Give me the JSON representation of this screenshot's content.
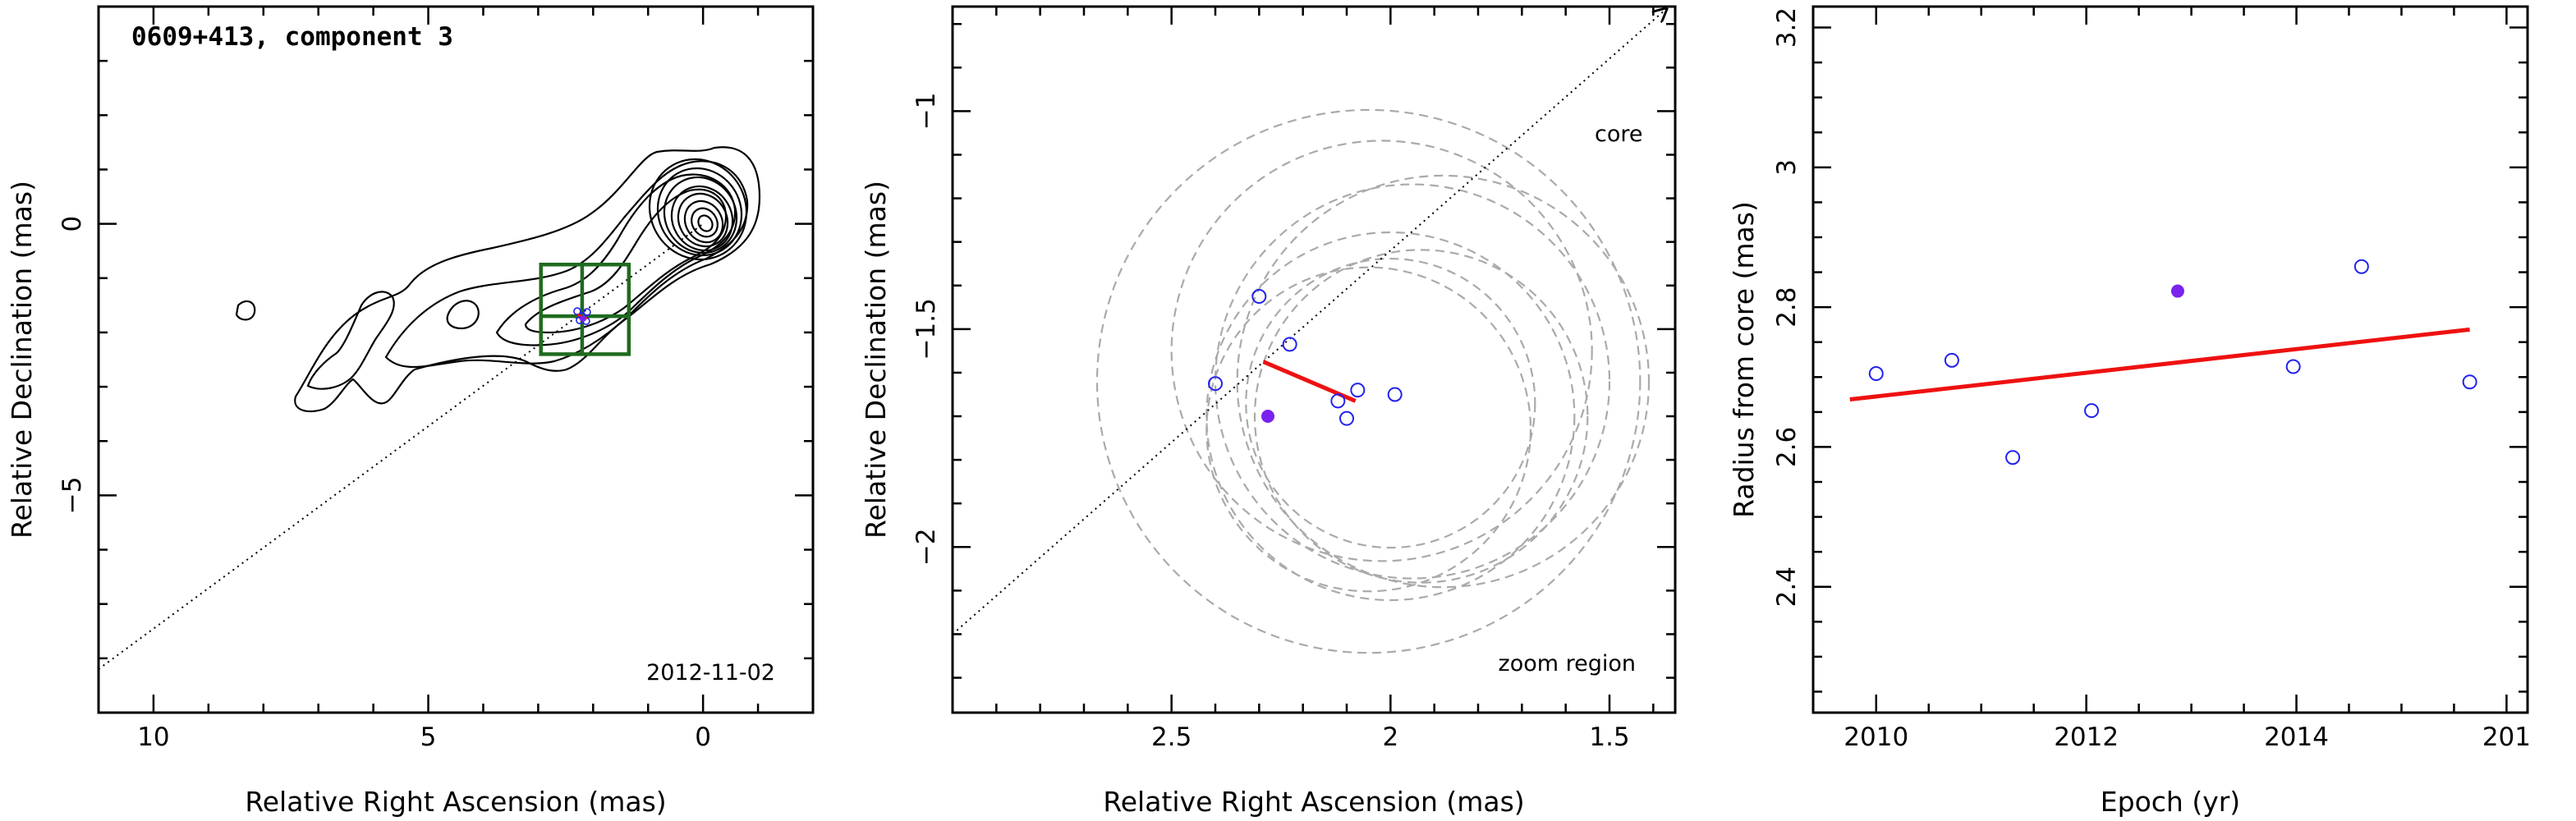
{
  "colors": {
    "axis": "#000000",
    "fit_line": "#ee1111",
    "open_marker": "#2222ee",
    "filled_marker": "#7a22ee",
    "ellipse": "#aaaaaa",
    "zoom_box": "#1f6b1f"
  },
  "panels": [
    {
      "title": "0609+413, component 3",
      "date": "2012-11-02",
      "xlabel": "Relative Right Ascension (mas)",
      "ylabel": "Relative Declination (mas)",
      "xticks": [
        "10",
        "5",
        "0"
      ],
      "yticks": [
        "0",
        "−5"
      ]
    },
    {
      "xlabel": "Relative Right Ascension (mas)",
      "ylabel": "Relative Declination (mas)",
      "xticks": [
        "2.5",
        "2",
        "1.5"
      ],
      "yticks": [
        "−1",
        "−1.5",
        "−2"
      ],
      "core_label": "core",
      "zoom_label": "zoom region"
    },
    {
      "xlabel": "Epoch (yr)",
      "ylabel": "Radius from core (mas)",
      "xticks": [
        "2010",
        "2012",
        "2014",
        "201"
      ],
      "yticks": [
        "2.4",
        "2.6",
        "2.8",
        "3",
        "3.2"
      ]
    }
  ],
  "chart_data": [
    {
      "type": "scatter",
      "title": "0609+413, component 3",
      "xlabel": "Relative Right Ascension (mas)",
      "ylabel": "Relative Declination (mas)",
      "xlim": [
        11,
        -2
      ],
      "ylim": [
        -9,
        4
      ],
      "x_reversed": true,
      "annotation": "2012-11-02",
      "contours": "VLBI total-intensity contour map, peak at core (0,0), jet extending to RA ~8, Dec ~-3",
      "component_position": {
        "ra": 2.2,
        "dec": -1.7
      },
      "zoom_region": {
        "ra": [
          1.35,
          2.95
        ],
        "dec": [
          -0.75,
          -2.4
        ]
      },
      "core_direction_line": {
        "from": [
          11,
          -8.2
        ],
        "to": [
          0,
          0
        ]
      }
    },
    {
      "type": "scatter",
      "xlabel": "Relative Right Ascension (mas)",
      "ylabel": "Relative Declination (mas)",
      "xlim": [
        3.0,
        1.35
      ],
      "ylim": [
        -2.38,
        -0.76
      ],
      "x_reversed": true,
      "series": [
        {
          "marker": "open-circle",
          "points": [
            {
              "ra": 2.3,
              "dec": -1.425
            },
            {
              "ra": 2.4,
              "dec": -1.625
            },
            {
              "ra": 2.23,
              "dec": -1.535
            },
            {
              "ra": 2.12,
              "dec": -1.665
            },
            {
              "ra": 2.1,
              "dec": -1.705
            },
            {
              "ra": 2.075,
              "dec": -1.64
            },
            {
              "ra": 1.99,
              "dec": -1.65
            }
          ]
        },
        {
          "marker": "filled-circle",
          "points": [
            {
              "ra": 2.28,
              "dec": -1.7
            }
          ]
        }
      ],
      "fit_line": {
        "from": [
          2.29,
          -1.575
        ],
        "to": [
          2.08,
          -1.665
        ]
      },
      "ellipses": [
        {
          "ra": 2.05,
          "dec": -1.62,
          "r": 0.62
        },
        {
          "ra": 2.02,
          "dec": -1.55,
          "r": 0.48
        },
        {
          "ra": 1.95,
          "dec": -1.62,
          "r": 0.45
        },
        {
          "ra": 1.88,
          "dec": -1.62,
          "r": 0.47
        },
        {
          "ra": 2.0,
          "dec": -1.7,
          "r": 0.42
        },
        {
          "ra": 1.93,
          "dec": -1.7,
          "r": 0.38
        },
        {
          "ra": 2.05,
          "dec": -1.73,
          "r": 0.37
        },
        {
          "ra": 2.0,
          "dec": -1.67,
          "r": 0.33
        }
      ],
      "core_direction_line": {
        "from": [
          3.0,
          -2.2
        ],
        "to": [
          1.37,
          -0.765
        ]
      },
      "annotations": [
        "core",
        "zoom region"
      ]
    },
    {
      "type": "scatter",
      "xlabel": "Epoch (yr)",
      "ylabel": "Radius from core (mas)",
      "xlim": [
        2009.4,
        2016.2
      ],
      "ylim": [
        2.22,
        3.23
      ],
      "series": [
        {
          "marker": "open-circle",
          "points": [
            {
              "x": 2010.0,
              "y": 2.705
            },
            {
              "x": 2010.72,
              "y": 2.724
            },
            {
              "x": 2011.3,
              "y": 2.585
            },
            {
              "x": 2012.05,
              "y": 2.652
            },
            {
              "x": 2013.97,
              "y": 2.715
            },
            {
              "x": 2014.62,
              "y": 2.858
            },
            {
              "x": 2015.65,
              "y": 2.693
            }
          ]
        },
        {
          "marker": "filled-circle",
          "points": [
            {
              "x": 2012.87,
              "y": 2.823
            }
          ]
        }
      ],
      "fit_line": {
        "from": [
          2009.75,
          2.668
        ],
        "to": [
          2015.65,
          2.768
        ]
      }
    }
  ]
}
